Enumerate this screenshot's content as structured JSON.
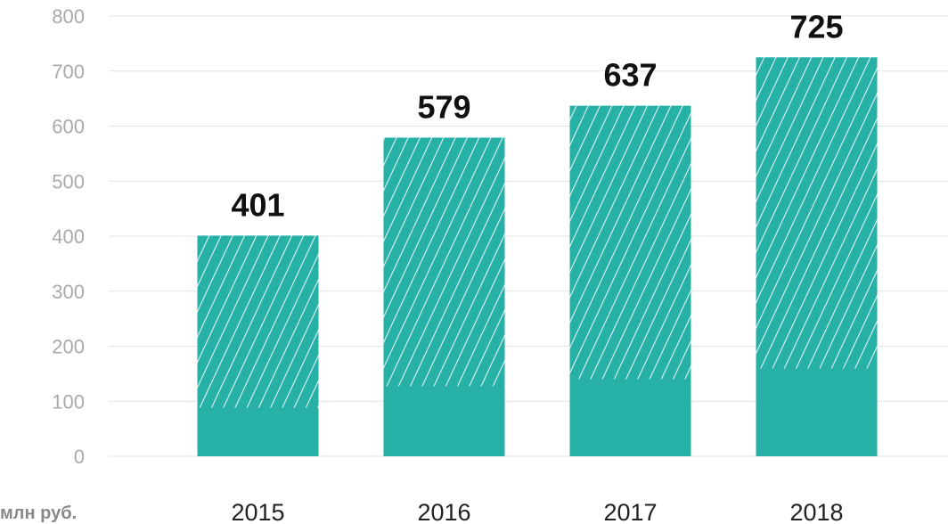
{
  "chart_data": {
    "type": "bar",
    "categories": [
      "2015",
      "2016",
      "2017",
      "2018"
    ],
    "values": [
      401,
      579,
      637,
      725
    ],
    "data_labels": [
      "401",
      "579",
      "637",
      "725"
    ],
    "ylim": [
      0,
      800
    ],
    "yticks": [
      0,
      100,
      200,
      300,
      400,
      500,
      600,
      700,
      800
    ],
    "ytick_labels": [
      "0",
      "100",
      "200",
      "300",
      "400",
      "500",
      "600",
      "700",
      "800"
    ],
    "ylabel": "млн руб.",
    "grid": true,
    "bar_color": "#26b0a6",
    "bar_pattern": "diagonal-hatch"
  }
}
